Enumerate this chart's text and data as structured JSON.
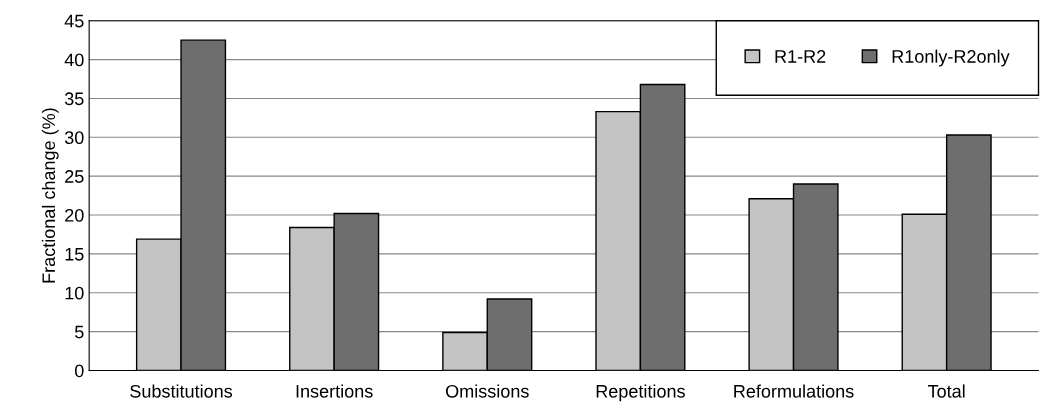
{
  "chart_data": {
    "type": "bar",
    "ylabel": "Fractional change (%)",
    "categories": [
      "Substitutions",
      "Insertions",
      "Omissions",
      "Repetitions",
      "Reformulations",
      "Total"
    ],
    "series": [
      {
        "name": "R1-R2",
        "color": "#c4c4c4",
        "values": [
          16.9,
          18.4,
          4.9,
          33.3,
          22.1,
          20.1
        ]
      },
      {
        "name": "R1only-R2only",
        "color": "#6e6e6e",
        "values": [
          42.5,
          20.2,
          9.2,
          36.8,
          24.0,
          30.3
        ]
      }
    ],
    "ylim": [
      0,
      45
    ],
    "yticks": [
      0,
      5,
      10,
      15,
      20,
      25,
      30,
      35,
      40,
      45
    ],
    "grid": "y",
    "legend": "top right"
  }
}
